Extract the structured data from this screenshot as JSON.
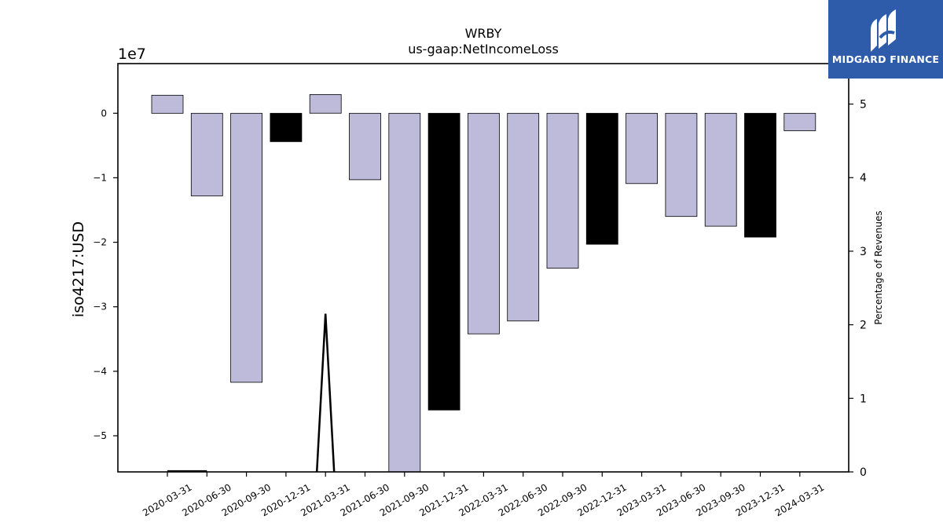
{
  "logo": {
    "text": "MIDGARD FINANCE",
    "icon": "midgard-logo-icon"
  },
  "chart_data": {
    "type": "bar",
    "title": "WRBY",
    "subtitle": "us-gaap:NetIncomeLoss",
    "ylabel": "iso4217:USD",
    "y2label": "Percentage of Revenues",
    "yscale_label": "1e7",
    "ylim": [
      -55600000,
      7700000
    ],
    "y2lim": [
      0,
      5.55
    ],
    "yticks": [
      0,
      -1,
      -2,
      -3,
      -4,
      -5
    ],
    "y2ticks": [
      0,
      1,
      2,
      3,
      4,
      5
    ],
    "categories": [
      "2020-03-31",
      "2020-06-30",
      "2020-09-30",
      "2020-12-31",
      "2021-03-31",
      "2021-06-30",
      "2021-09-30",
      "2021-12-31",
      "2022-03-31",
      "2022-06-30",
      "2022-09-30",
      "2022-12-31",
      "2023-03-31",
      "2023-06-30",
      "2023-09-30",
      "2023-12-31",
      "2024-03-31"
    ],
    "values": [
      2800000,
      -12800000,
      -41700000,
      -4400000,
      2900000,
      -10300000,
      -56000000,
      -46000000,
      -34200000,
      -32200000,
      -24000000,
      -20300000,
      -10900000,
      -16000000,
      -17500000,
      -19200000,
      -2700000
    ],
    "bar_colors": [
      "#bebada",
      "#bebada",
      "#bebada",
      "#000000",
      "#bebada",
      "#bebada",
      "#bebada",
      "#000000",
      "#bebada",
      "#bebada",
      "#bebada",
      "#000000",
      "#bebada",
      "#bebada",
      "#bebada",
      "#000000",
      "#bebada"
    ],
    "line_series": {
      "values": [
        0.01,
        0.01,
        null,
        null,
        2.15,
        null,
        null,
        null,
        null,
        null,
        null,
        null,
        null,
        null,
        null,
        null,
        null
      ],
      "color": "#000000"
    },
    "grid": false
  }
}
